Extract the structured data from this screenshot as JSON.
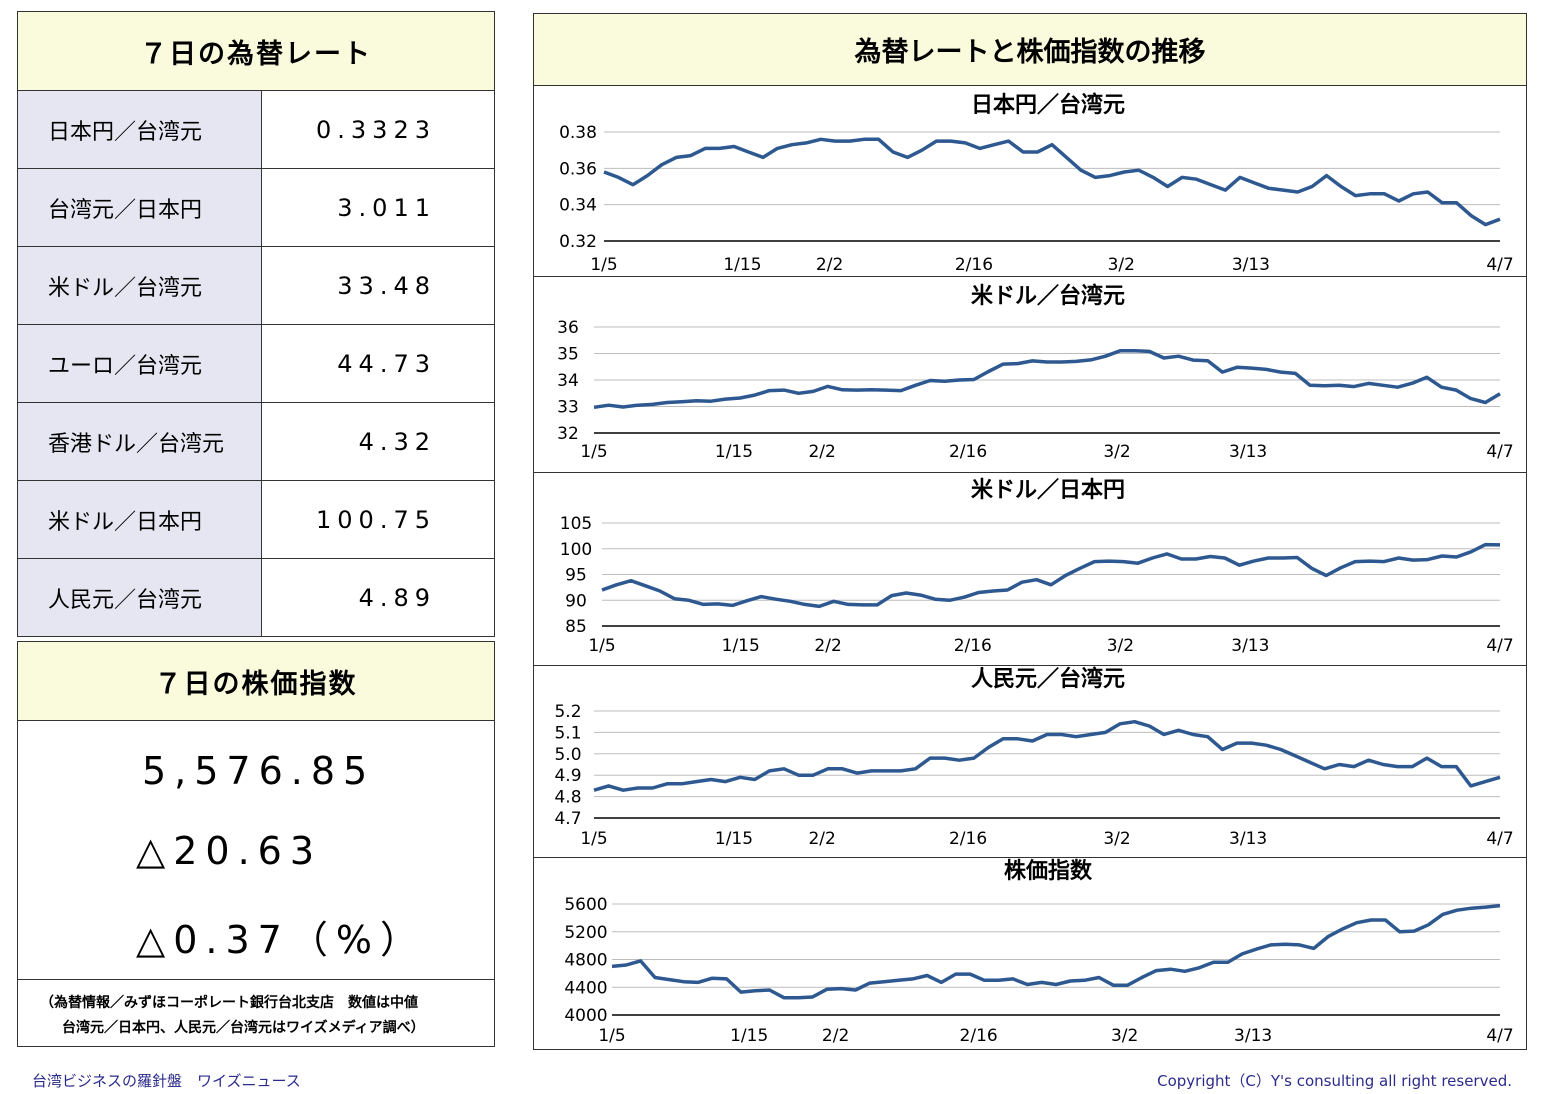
{
  "fx_title": "７日の為替レート",
  "fx_rates": [
    {
      "label": "日本円／台湾元",
      "value": "0.3323"
    },
    {
      "label": "台湾元／日本円",
      "value": "3.011"
    },
    {
      "label": "米ドル／台湾元",
      "value": "33.48"
    },
    {
      "label": "ユーロ／台湾元",
      "value": "44.73"
    },
    {
      "label": "香港ドル／台湾元",
      "value": "4.32"
    },
    {
      "label": "米ドル／日本円",
      "value": "100.75"
    },
    {
      "label": "人民元／台湾元",
      "value": "4.89"
    }
  ],
  "stock_title": "７日の株価指数",
  "stock": {
    "index": "5,576.85",
    "change": "△20.63",
    "change_pct": "△0.37（%）"
  },
  "note": {
    "line1": "（為替情報／みずほコーポレート銀行台北支店　数値は中値",
    "line2": "台湾元／日本円、人民元／台湾元はワイズメディア調べ）"
  },
  "right_title": "為替レートと株価指数の推移",
  "footer": {
    "left": "台湾ビジネスの羅針盤　ワイズニュース",
    "right": "Copyright（C）Y's consulting all right reserved."
  },
  "colors": {
    "line": "#2e5890",
    "header_bg": "#fafadc",
    "label_bg": "#e6e6f2"
  },
  "chart_data": [
    {
      "type": "line",
      "title": "日本円／台湾元",
      "x_ticks": [
        "1/5",
        "1/15",
        "2/2",
        "2/16",
        "3/2",
        "3/13",
        "4/7"
      ],
      "y_ticks": [
        0.32,
        0.34,
        0.36,
        0.38
      ],
      "ylim": [
        0.32,
        0.38
      ],
      "values": [
        0.358,
        0.355,
        0.351,
        0.356,
        0.362,
        0.366,
        0.367,
        0.371,
        0.371,
        0.372,
        0.369,
        0.366,
        0.371,
        0.373,
        0.374,
        0.376,
        0.375,
        0.375,
        0.376,
        0.376,
        0.369,
        0.366,
        0.37,
        0.375,
        0.375,
        0.374,
        0.371,
        0.373,
        0.375,
        0.369,
        0.369,
        0.373,
        0.366,
        0.359,
        0.355,
        0.356,
        0.358,
        0.359,
        0.355,
        0.35,
        0.355,
        0.354,
        0.351,
        0.348,
        0.355,
        0.352,
        0.349,
        0.348,
        0.347,
        0.35,
        0.356,
        0.35,
        0.345,
        0.346,
        0.346,
        0.342,
        0.346,
        0.347,
        0.341,
        0.341,
        0.334,
        0.329,
        0.332
      ]
    },
    {
      "type": "line",
      "title": "米ドル／台湾元",
      "x_ticks": [
        "1/5",
        "1/15",
        "2/2",
        "2/16",
        "3/2",
        "3/13",
        "4/7"
      ],
      "y_ticks": [
        32,
        33,
        34,
        35,
        36
      ],
      "ylim": [
        32,
        36
      ],
      "values": [
        32.97,
        33.05,
        32.98,
        33.05,
        33.08,
        33.15,
        33.18,
        33.22,
        33.2,
        33.28,
        33.32,
        33.43,
        33.6,
        33.62,
        33.5,
        33.57,
        33.76,
        33.63,
        33.62,
        33.63,
        33.62,
        33.6,
        33.8,
        33.98,
        33.95,
        34.0,
        34.02,
        34.32,
        34.6,
        34.62,
        34.72,
        34.68,
        34.68,
        34.7,
        34.76,
        34.9,
        35.1,
        35.1,
        35.08,
        34.83,
        34.9,
        34.75,
        34.73,
        34.3,
        34.48,
        34.45,
        34.4,
        34.3,
        34.25,
        33.8,
        33.78,
        33.8,
        33.75,
        33.87,
        33.8,
        33.73,
        33.88,
        34.1,
        33.73,
        33.62,
        33.3,
        33.15,
        33.48
      ]
    },
    {
      "type": "line",
      "title": "米ドル／日本円",
      "x_ticks": [
        "1/5",
        "1/15",
        "2/2",
        "2/16",
        "3/2",
        "3/13",
        "4/7"
      ],
      "y_ticks": [
        85,
        90,
        95,
        100,
        105
      ],
      "ylim": [
        85,
        105
      ],
      "values": [
        92.0,
        93.0,
        93.8,
        92.8,
        91.8,
        90.3,
        90.0,
        89.2,
        89.3,
        89.0,
        89.9,
        90.7,
        90.2,
        89.8,
        89.2,
        88.8,
        89.8,
        89.2,
        89.1,
        89.1,
        90.9,
        91.4,
        91.0,
        90.2,
        90.0,
        90.6,
        91.5,
        91.8,
        92.0,
        93.5,
        94.0,
        93.0,
        94.8,
        96.2,
        97.5,
        97.6,
        97.5,
        97.2,
        98.2,
        99.0,
        98.0,
        98.0,
        98.5,
        98.2,
        96.8,
        97.6,
        98.2,
        98.2,
        98.3,
        96.2,
        94.8,
        96.3,
        97.5,
        97.6,
        97.5,
        98.2,
        97.8,
        97.9,
        98.6,
        98.4,
        99.4,
        100.8,
        100.75
      ]
    },
    {
      "type": "line",
      "title": "人民元／台湾元",
      "x_ticks": [
        "1/5",
        "1/15",
        "2/2",
        "2/16",
        "3/2",
        "3/13",
        "4/7"
      ],
      "y_ticks": [
        4.7,
        4.8,
        4.9,
        5.0,
        5.1,
        5.2
      ],
      "ylim": [
        4.7,
        5.2
      ],
      "tick_labels": [
        "4.7",
        "4.8",
        "4.9",
        "5.0",
        "5.1",
        "5.2"
      ],
      "values": [
        4.83,
        4.85,
        4.83,
        4.84,
        4.84,
        4.86,
        4.86,
        4.87,
        4.88,
        4.87,
        4.89,
        4.88,
        4.92,
        4.93,
        4.9,
        4.9,
        4.93,
        4.93,
        4.91,
        4.92,
        4.92,
        4.92,
        4.93,
        4.98,
        4.98,
        4.97,
        4.98,
        5.03,
        5.07,
        5.07,
        5.06,
        5.09,
        5.09,
        5.08,
        5.09,
        5.1,
        5.14,
        5.15,
        5.13,
        5.09,
        5.11,
        5.09,
        5.08,
        5.02,
        5.05,
        5.05,
        5.04,
        5.02,
        4.99,
        4.96,
        4.93,
        4.95,
        4.94,
        4.97,
        4.95,
        4.94,
        4.94,
        4.98,
        4.94,
        4.94,
        4.85,
        4.87,
        4.89
      ]
    },
    {
      "type": "line",
      "title": "株価指数",
      "x_ticks": [
        "1/5",
        "1/15",
        "2/2",
        "2/16",
        "3/2",
        "3/13",
        "4/7"
      ],
      "y_ticks": [
        4000,
        4400,
        4800,
        5200,
        5600
      ],
      "ylim": [
        4000,
        5600
      ],
      "values": [
        4700,
        4720,
        4780,
        4540,
        4510,
        4480,
        4470,
        4530,
        4520,
        4330,
        4350,
        4360,
        4250,
        4250,
        4260,
        4370,
        4380,
        4360,
        4460,
        4480,
        4500,
        4520,
        4570,
        4470,
        4590,
        4590,
        4500,
        4500,
        4520,
        4440,
        4470,
        4440,
        4490,
        4500,
        4540,
        4430,
        4430,
        4540,
        4640,
        4660,
        4630,
        4680,
        4760,
        4760,
        4880,
        4950,
        5010,
        5020,
        5010,
        4960,
        5130,
        5240,
        5330,
        5370,
        5370,
        5200,
        5210,
        5300,
        5450,
        5510,
        5540,
        5555,
        5576.85
      ]
    }
  ]
}
